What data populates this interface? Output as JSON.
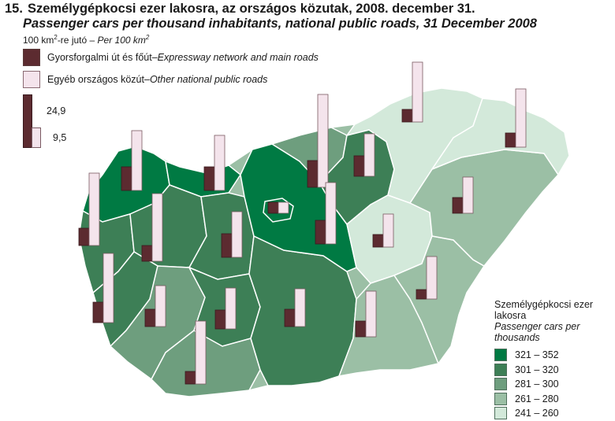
{
  "title": {
    "number": "15.",
    "hu": "Személygépkocsi ezer lakosra, az országos közutak, 2008. december 31.",
    "en": "Passenger cars per thousand inhabitants, national public roads, 31 December 2008"
  },
  "unit": {
    "hu": "100 km",
    "sup": "2",
    "mid": "-re jutó – ",
    "en": "Per 100 km",
    "sup2": "2"
  },
  "bar_legend": [
    {
      "hu": "Gyorsforgalmi út és főút",
      "sep": " – ",
      "en": "Expressway network and main roads",
      "color": "#5c2b30"
    },
    {
      "hu": "Egyéb országos közút",
      "sep": " – ",
      "en": "Other national public roads",
      "color": "#f4e4ec"
    }
  ],
  "bar_scale": {
    "high": "24,9",
    "low": "9,5"
  },
  "classes_legend": {
    "title_hu": "Személygépkocsi ezer lakosra",
    "title_en": "Passenger cars per thousands",
    "classes": [
      {
        "label": "321 – 352",
        "color": "#007a43"
      },
      {
        "label": "301 – 320",
        "color": "#3d7f56"
      },
      {
        "label": "281 – 300",
        "color": "#6e9e7e"
      },
      {
        "label": "261 – 280",
        "color": "#9bbfa5"
      },
      {
        "label": "241 – 260",
        "color": "#d3e9da"
      }
    ]
  }
}
